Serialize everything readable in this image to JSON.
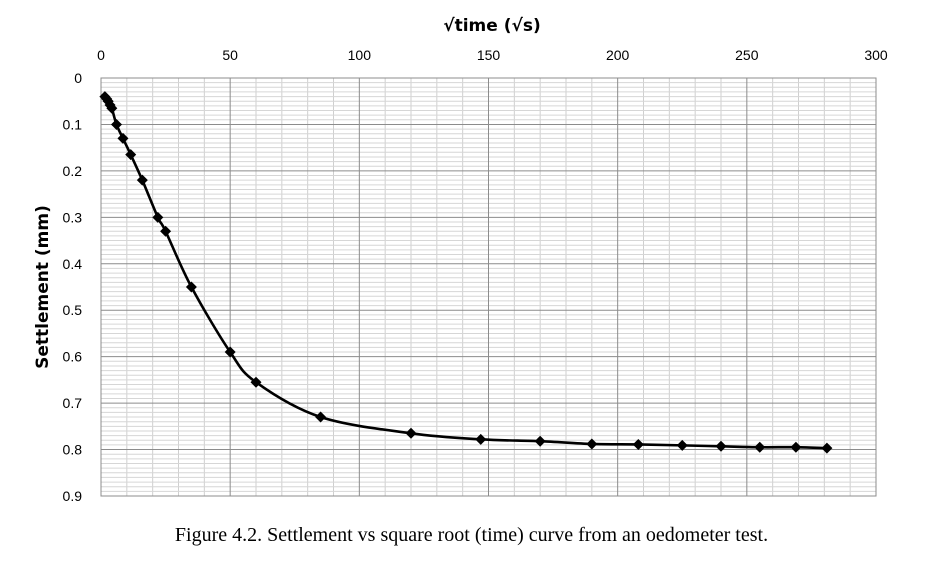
{
  "caption": "Figure 4.2. Settlement vs square root (time) curve from an oedometer test.",
  "chart_data": {
    "type": "line",
    "xlabel": "√time  (√s)",
    "ylabel": "Settlement (mm)",
    "xlim": [
      0,
      300
    ],
    "ylim": [
      0,
      0.9
    ],
    "y_inverted": true,
    "x_ticks": [
      0,
      50,
      100,
      150,
      200,
      250,
      300
    ],
    "y_ticks": [
      "0",
      "0.1",
      "0.2",
      "0.3",
      "0.4",
      "0.5",
      "0.6",
      "0.7",
      "0.8",
      "0.9"
    ],
    "x_axis_position": "top",
    "grid": true,
    "marker": "diamond",
    "line_color": "#000000",
    "smooth": true,
    "series": [
      {
        "x": [
          1.5,
          2.2,
          2.8,
          3.5,
          4.2,
          6,
          8.5,
          11.5,
          16,
          22,
          25,
          35,
          50,
          60,
          85,
          120,
          147,
          170,
          190,
          208,
          225,
          240,
          255,
          269,
          281
        ],
        "y": [
          0.04,
          0.045,
          0.05,
          0.058,
          0.065,
          0.1,
          0.13,
          0.165,
          0.22,
          0.3,
          0.33,
          0.45,
          0.59,
          0.655,
          0.73,
          0.765,
          0.778,
          0.782,
          0.788,
          0.789,
          0.791,
          0.793,
          0.795,
          0.795,
          0.797
        ]
      }
    ]
  }
}
